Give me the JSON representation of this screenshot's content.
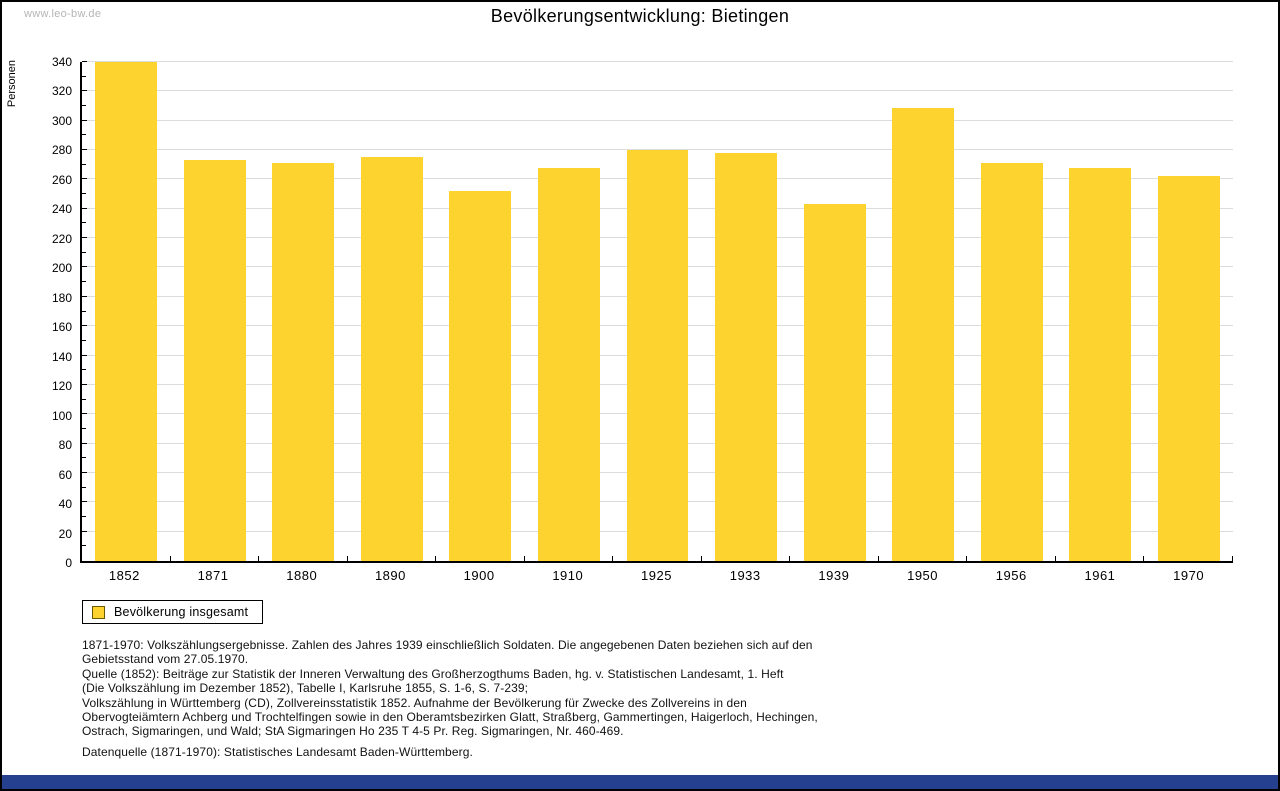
{
  "page": {
    "watermark": "www.leo-bw.de"
  },
  "chart_data": {
    "type": "bar",
    "title": "Bevölkerungsentwicklung: Bietingen",
    "ylabel": "Personen",
    "xlabel": "",
    "categories": [
      "1852",
      "1871",
      "1880",
      "1890",
      "1900",
      "1910",
      "1925",
      "1933",
      "1939",
      "1950",
      "1956",
      "1961",
      "1970"
    ],
    "series": [
      {
        "name": "Bevölkerung insgesamt",
        "values": [
          340,
          273,
          271,
          275,
          252,
          268,
          280,
          278,
          243,
          309,
          271,
          268,
          262
        ]
      }
    ],
    "ylim": [
      0,
      340
    ],
    "ytick_step": 20,
    "minor_tick_step": 10,
    "grid": true,
    "legend_position": "bottom-left",
    "bar_color": "#FCD32F"
  },
  "legend": {
    "label": "Bevölkerung insgesamt",
    "swatch_color": "#FCD32F"
  },
  "footnotes": {
    "lines": [
      "1871-1970: Volkszählungsergebnisse. Zahlen des Jahres 1939 einschließlich Soldaten. Die angegebenen Daten beziehen sich auf den",
      "Gebietsstand vom 27.05.1970.",
      "Quelle (1852): Beiträge zur Statistik der Inneren Verwaltung des Großherzogthums Baden, hg. v. Statistischen Landesamt, 1. Heft",
      "(Die Volkszählung im Dezember 1852), Tabelle I, Karlsruhe 1855, S. 1-6, S. 7-239;",
      "Volkszählung in Württemberg (CD), Zollvereinsstatistik 1852. Aufnahme der Bevölkerung für Zwecke des Zollvereins in den",
      "Obervogteiämtern Achberg und Trochtelfingen sowie in den Oberamtsbezirken Glatt, Straßberg, Gammertingen, Haigerloch, Hechingen,",
      "Ostrach, Sigmaringen, und Wald; StA Sigmaringen Ho 235 T 4-5 Pr. Reg. Sigmaringen, Nr. 460-469."
    ],
    "datasource": "Datenquelle (1871-1970): Statistisches Landesamt Baden-Württemberg."
  },
  "footer": {
    "bar_color": "#24408F"
  }
}
